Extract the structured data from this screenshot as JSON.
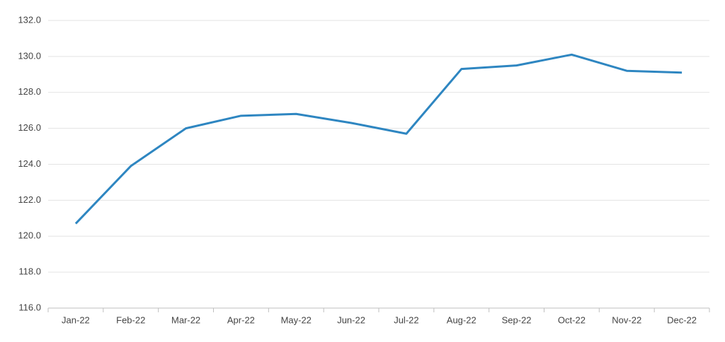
{
  "chart_data": {
    "type": "line",
    "categories": [
      "Jan-22",
      "Feb-22",
      "Mar-22",
      "Apr-22",
      "May-22",
      "Jun-22",
      "Jul-22",
      "Aug-22",
      "Sep-22",
      "Oct-22",
      "Nov-22",
      "Dec-22"
    ],
    "values": [
      120.7,
      123.9,
      126.0,
      126.7,
      126.8,
      126.3,
      125.7,
      129.3,
      129.5,
      130.1,
      129.2,
      129.1
    ],
    "color": "#2e86c1",
    "ylim": [
      116,
      132
    ],
    "yticks": [
      {
        "value": 116,
        "label": "116.0"
      },
      {
        "value": 118,
        "label": "118.0"
      },
      {
        "value": 120,
        "label": "120.0"
      },
      {
        "value": 122,
        "label": "122.0"
      },
      {
        "value": 124,
        "label": "124.0"
      },
      {
        "value": 126,
        "label": "126.0"
      },
      {
        "value": 128,
        "label": "128.0"
      },
      {
        "value": 130,
        "label": "130.0"
      },
      {
        "value": 132,
        "label": "132.0"
      }
    ],
    "grid": true
  }
}
